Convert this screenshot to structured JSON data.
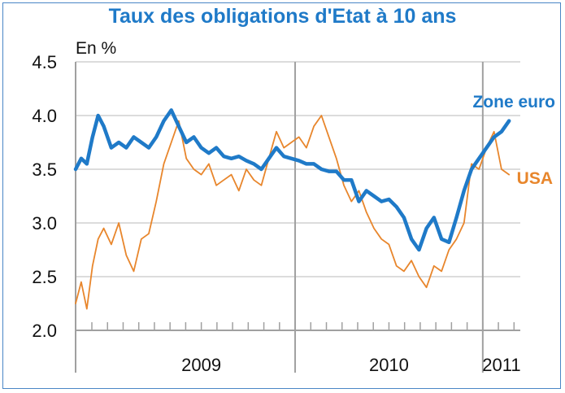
{
  "chart_data": {
    "type": "line",
    "title": "Taux des obligations d'Etat à 10 ans",
    "ylabel": "En %",
    "xlabel": "",
    "ylim": [
      2.0,
      4.5
    ],
    "yticks": [
      "2.0",
      "2.5",
      "3.0",
      "3.5",
      "4.0",
      "4.5"
    ],
    "xlim": [
      2008.83,
      2011.2
    ],
    "x_tick_labels": [
      {
        "label": "2009",
        "at": 2009.5
      },
      {
        "label": "2010",
        "at": 2010.5
      },
      {
        "label": "2011",
        "at": 2011.1
      }
    ],
    "year_boundaries": [
      2010.0,
      2011.0
    ],
    "grid": "horizontal",
    "series": [
      {
        "name": "Zone euro",
        "color": "#1f7ac8",
        "x": [
          2008.83,
          2008.86,
          2008.89,
          2008.92,
          2008.95,
          2008.98,
          2009.02,
          2009.06,
          2009.1,
          2009.14,
          2009.18,
          2009.22,
          2009.26,
          2009.3,
          2009.34,
          2009.38,
          2009.42,
          2009.46,
          2009.5,
          2009.54,
          2009.58,
          2009.62,
          2009.66,
          2009.7,
          2009.74,
          2009.78,
          2009.82,
          2009.86,
          2009.9,
          2009.94,
          2009.98,
          2010.02,
          2010.06,
          2010.1,
          2010.14,
          2010.18,
          2010.22,
          2010.26,
          2010.3,
          2010.34,
          2010.38,
          2010.42,
          2010.46,
          2010.5,
          2010.54,
          2010.58,
          2010.62,
          2010.66,
          2010.7,
          2010.74,
          2010.78,
          2010.82,
          2010.86,
          2010.9,
          2010.94,
          2010.98,
          2011.02,
          2011.06,
          2011.1,
          2011.14
        ],
        "values": [
          3.5,
          3.6,
          3.55,
          3.8,
          4.0,
          3.9,
          3.7,
          3.75,
          3.7,
          3.8,
          3.75,
          3.7,
          3.8,
          3.95,
          4.05,
          3.9,
          3.75,
          3.8,
          3.7,
          3.65,
          3.7,
          3.62,
          3.6,
          3.62,
          3.58,
          3.55,
          3.5,
          3.6,
          3.7,
          3.62,
          3.6,
          3.58,
          3.55,
          3.55,
          3.5,
          3.48,
          3.48,
          3.4,
          3.4,
          3.2,
          3.3,
          3.25,
          3.2,
          3.22,
          3.15,
          3.05,
          2.85,
          2.75,
          2.95,
          3.05,
          2.85,
          2.82,
          3.05,
          3.3,
          3.5,
          3.6,
          3.7,
          3.8,
          3.85,
          3.95
        ]
      },
      {
        "name": "USA",
        "color": "#e8862c",
        "x": [
          2008.83,
          2008.86,
          2008.89,
          2008.92,
          2008.95,
          2008.98,
          2009.02,
          2009.06,
          2009.1,
          2009.14,
          2009.18,
          2009.22,
          2009.26,
          2009.3,
          2009.34,
          2009.38,
          2009.42,
          2009.46,
          2009.5,
          2009.54,
          2009.58,
          2009.62,
          2009.66,
          2009.7,
          2009.74,
          2009.78,
          2009.82,
          2009.86,
          2009.9,
          2009.94,
          2009.98,
          2010.02,
          2010.06,
          2010.1,
          2010.14,
          2010.18,
          2010.22,
          2010.26,
          2010.3,
          2010.34,
          2010.38,
          2010.42,
          2010.46,
          2010.5,
          2010.54,
          2010.58,
          2010.62,
          2010.66,
          2010.7,
          2010.74,
          2010.78,
          2010.82,
          2010.86,
          2010.9,
          2010.94,
          2010.98,
          2011.02,
          2011.06,
          2011.1,
          2011.14
        ],
        "values": [
          2.25,
          2.45,
          2.2,
          2.6,
          2.85,
          2.95,
          2.8,
          3.0,
          2.7,
          2.55,
          2.85,
          2.9,
          3.2,
          3.55,
          3.75,
          3.95,
          3.6,
          3.5,
          3.45,
          3.55,
          3.35,
          3.4,
          3.45,
          3.3,
          3.5,
          3.4,
          3.35,
          3.6,
          3.85,
          3.7,
          3.75,
          3.8,
          3.7,
          3.9,
          4.0,
          3.8,
          3.6,
          3.35,
          3.2,
          3.3,
          3.1,
          2.95,
          2.85,
          2.8,
          2.6,
          2.55,
          2.65,
          2.5,
          2.4,
          2.6,
          2.55,
          2.75,
          2.85,
          3.0,
          3.55,
          3.5,
          3.7,
          3.85,
          3.5,
          3.45
        ]
      }
    ],
    "annotations": [
      {
        "text": "Zone euro",
        "color": "#1f7ac8"
      },
      {
        "text": "USA",
        "color": "#e8862c"
      }
    ]
  }
}
